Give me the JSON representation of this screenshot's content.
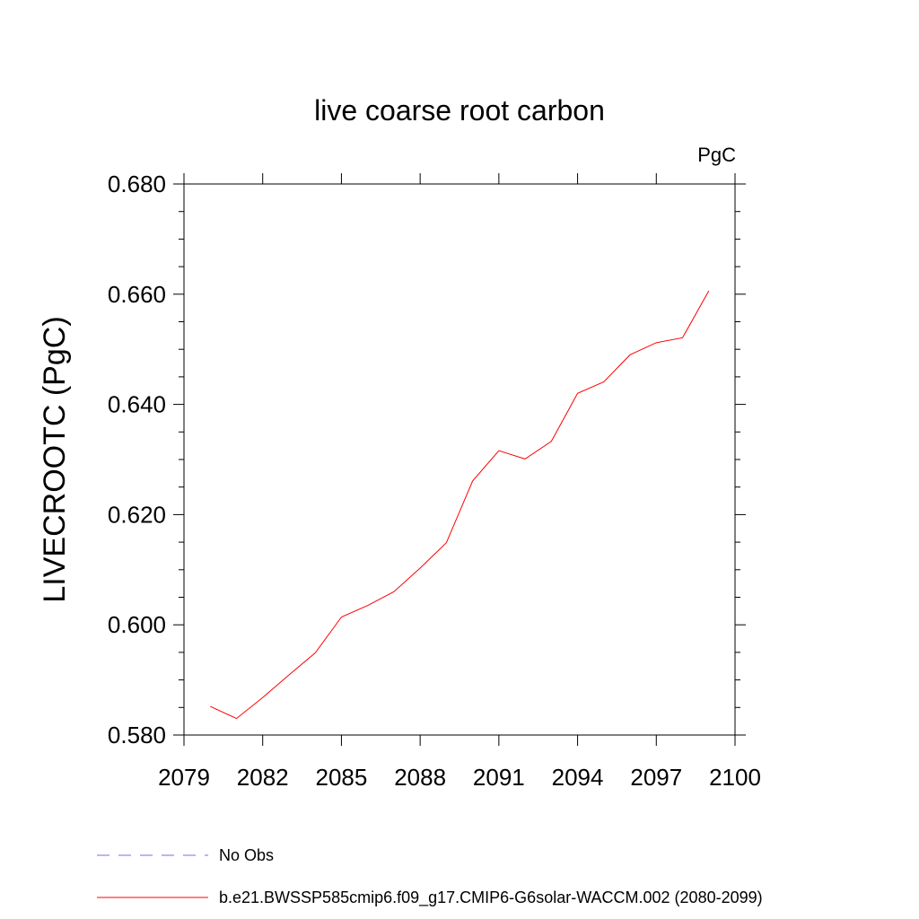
{
  "chart_data": {
    "type": "line",
    "title": "live coarse root carbon",
    "units_label": "PgC",
    "ylabel": "LIVECROOTC  (PgC)",
    "xlabel": "",
    "xlim": [
      2079,
      2100
    ],
    "ylim": [
      0.58,
      0.68
    ],
    "x_ticks": [
      "2079",
      "2082",
      "2085",
      "2088",
      "2091",
      "2094",
      "2097",
      "2100"
    ],
    "y_ticks": [
      "0.580",
      "0.600",
      "0.620",
      "0.640",
      "0.660",
      "0.680"
    ],
    "grid": false,
    "legend_position": "bottom-left",
    "legend": [
      {
        "label": "No Obs",
        "style": "dashed",
        "color": "#7b68ee"
      },
      {
        "label": "b.e21.BWSSP585cmip6.f09_g17.CMIP6-G6solar-WACCM.002 (2080-2099)",
        "style": "solid",
        "color": "#ff0000"
      }
    ],
    "series": [
      {
        "name": "b.e21.BWSSP585cmip6.f09_g17.CMIP6-G6solar-WACCM.002 (2080-2099)",
        "color": "#ff0000",
        "x": [
          2080,
          2081,
          2082,
          2083,
          2084,
          2085,
          2086,
          2087,
          2088,
          2089,
          2090,
          2091,
          2092,
          2093,
          2094,
          2095,
          2096,
          2097,
          2098,
          2099
        ],
        "y": [
          0.5852,
          0.583,
          0.5868,
          0.5909,
          0.5949,
          0.6014,
          0.6035,
          0.606,
          0.6103,
          0.6149,
          0.6261,
          0.6316,
          0.6301,
          0.6333,
          0.642,
          0.6441,
          0.649,
          0.6512,
          0.6521,
          0.6606
        ]
      }
    ]
  }
}
